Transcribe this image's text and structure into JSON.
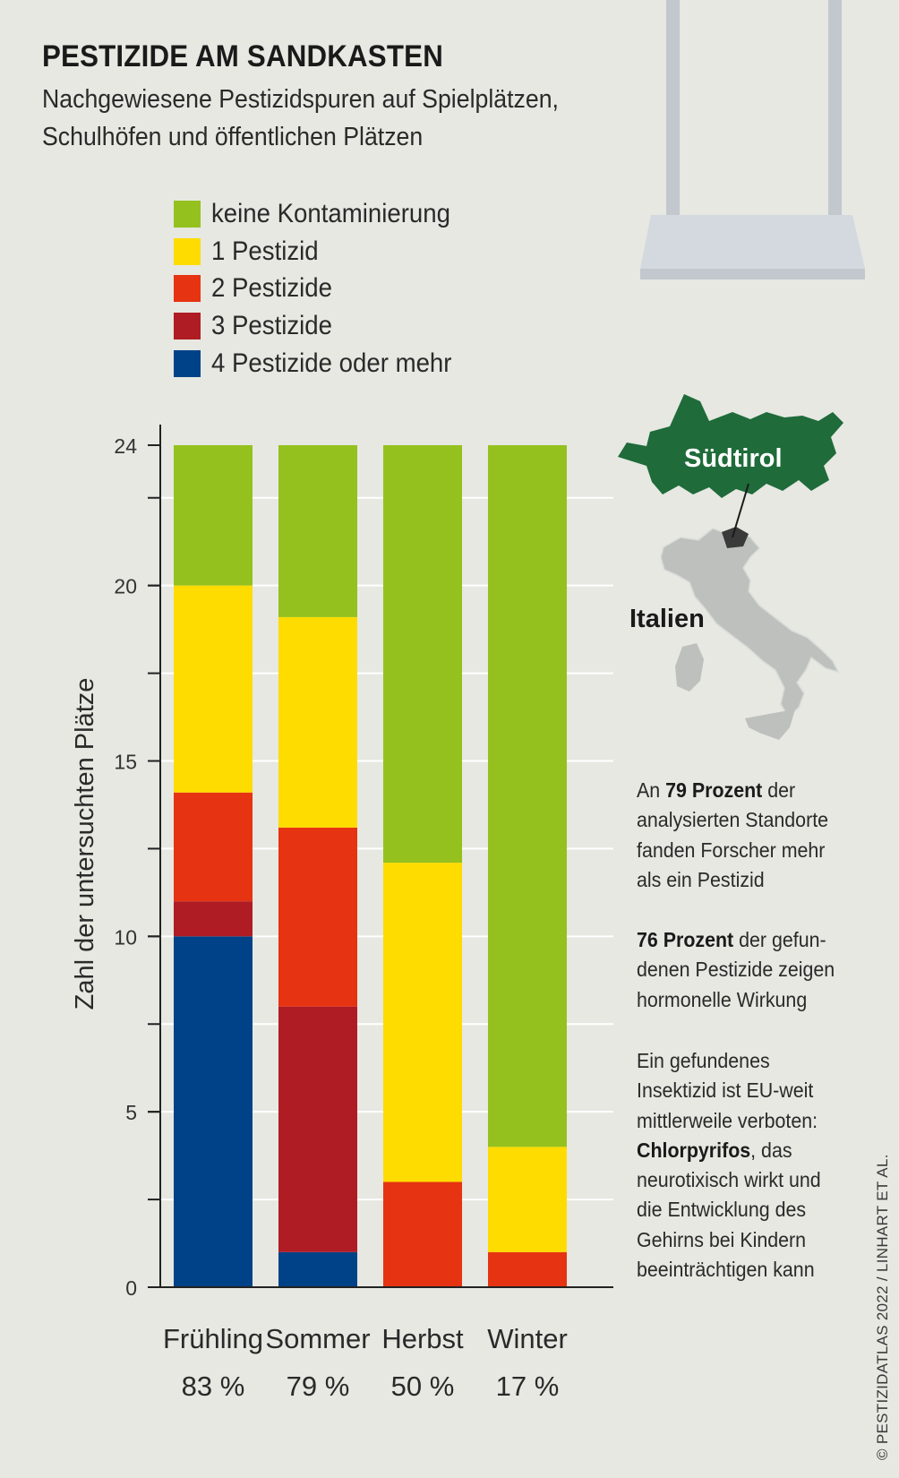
{
  "header": {
    "title": "PESTIZIDE AM SANDKASTEN",
    "subtitle_line1": "Nachgewiesene Pestizidspuren auf Spielplätzen,",
    "subtitle_line2": "Schulhöfen und öffentlichen Plätzen"
  },
  "legend": [
    {
      "label": "keine Kontaminierung",
      "color": "#95c11f"
    },
    {
      "label": "1 Pestizid",
      "color": "#ffdc00"
    },
    {
      "label": "2 Pestizide",
      "color": "#e63312"
    },
    {
      "label": "3 Pestizide",
      "color": "#b01c24"
    },
    {
      "label": "4 Pestizide oder mehr",
      "color": "#004288"
    }
  ],
  "chart_data": {
    "type": "bar",
    "stacked": true,
    "ylabel": "Zahl der untersuchten Plätze",
    "ylim": [
      0,
      24
    ],
    "yticks": [
      0,
      5,
      10,
      15,
      20,
      24
    ],
    "categories": [
      "Frühling",
      "Sommer",
      "Herbst",
      "Winter"
    ],
    "category_percentages": [
      "83 %",
      "79 %",
      "50 %",
      "17 %"
    ],
    "series": [
      {
        "name": "4 Pestizide oder mehr",
        "color": "#004288",
        "values": [
          10,
          1,
          0,
          0
        ]
      },
      {
        "name": "3 Pestizide",
        "color": "#b01c24",
        "values": [
          1,
          7,
          0,
          0
        ]
      },
      {
        "name": "2 Pestizide",
        "color": "#e63312",
        "values": [
          3.1,
          5.1,
          3,
          1
        ]
      },
      {
        "name": "1 Pestizid",
        "color": "#ffdc00",
        "values": [
          5.9,
          6,
          9.1,
          3
        ]
      },
      {
        "name": "keine Kontaminierung",
        "color": "#95c11f",
        "values": [
          4,
          4.9,
          11.9,
          20
        ]
      }
    ]
  },
  "map": {
    "region_label": "Südtirol",
    "country_label": "Italien",
    "region_color": "#1f6b3a",
    "country_color": "#bdc0bd"
  },
  "notes": {
    "n1_pre": "An ",
    "n1_bold": "79 Prozent",
    "n1_post": " der analysierten Standorte fanden Forscher mehr als ein Pestizid",
    "n2_bold": "76 Prozent",
    "n2_post": " der gefun-denen Pestizide zeigen hormonelle Wirkung",
    "n3_pre": "Ein gefundenes Insektizid ist EU-weit mittlerweile verboten: ",
    "n3_bold": "Chlorpyrifos",
    "n3_post": ", das neurotixisch wirkt und die Entwicklung des Gehirns bei Kindern beeinträchtigen kann"
  },
  "credit": "© PESTIZIDATLAS 2022 / LINHART ET AL."
}
